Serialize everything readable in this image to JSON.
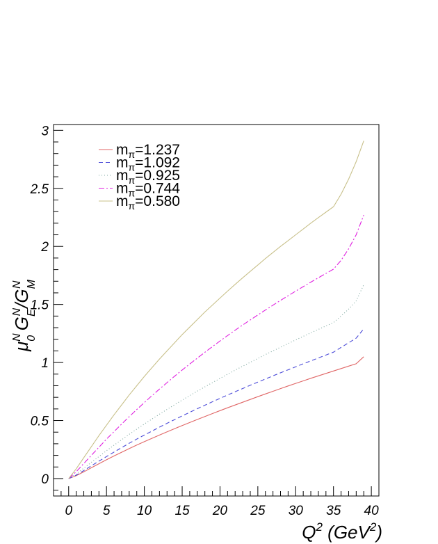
{
  "chart_data": {
    "type": "line",
    "xlim": [
      -2,
      41
    ],
    "ylim": [
      -0.15,
      3.05
    ],
    "x_ticks": [
      0,
      5,
      10,
      15,
      20,
      25,
      30,
      35,
      40
    ],
    "x_tick_labels": [
      "0",
      "5",
      "10",
      "15",
      "20",
      "25",
      "30",
      "35",
      "40"
    ],
    "y_ticks": [
      0,
      0.5,
      1,
      1.5,
      2,
      2.5,
      3
    ],
    "y_tick_labels": [
      "0",
      "0.5",
      "1",
      "1.5",
      "2",
      "2.5",
      "3"
    ],
    "xlabel": {
      "base": "Q",
      "sup": "2",
      "unit_open": " (GeV",
      "unit_sup": "2",
      "unit_close": ")"
    },
    "ylabel": {
      "mu": "μ",
      "mu_sub": "0",
      "mu_sup": "N",
      "ge": "G",
      "ge_sub": "E",
      "ge_sup": "N",
      "slash": "/",
      "gm": "G",
      "gm_sub": "M",
      "gm_sup": "N"
    },
    "legend_position": "top-left",
    "grid": false,
    "x": [
      0,
      1,
      2,
      3,
      4,
      5,
      6,
      7,
      8,
      9,
      10,
      11,
      12,
      13,
      14,
      15,
      16,
      17,
      18,
      19,
      20,
      21,
      22,
      23,
      24,
      25,
      26,
      27,
      28,
      29,
      30,
      31,
      32,
      33,
      34,
      35,
      36,
      37,
      38,
      39
    ],
    "series": [
      {
        "name": "m",
        "sub": "π",
        "value": "=1.237",
        "color": "#e06666",
        "dash": "",
        "values": [
          0,
          0.025,
          0.058,
          0.093,
          0.128,
          0.162,
          0.195,
          0.227,
          0.258,
          0.289,
          0.318,
          0.347,
          0.375,
          0.403,
          0.43,
          0.457,
          0.483,
          0.509,
          0.535,
          0.56,
          0.585,
          0.61,
          0.634,
          0.658,
          0.682,
          0.706,
          0.729,
          0.752,
          0.775,
          0.798,
          0.82,
          0.842,
          0.864,
          0.885,
          0.906,
          0.927,
          0.948,
          0.969,
          0.989,
          1.05
        ]
      },
      {
        "name": "m",
        "sub": "π",
        "value": "=1.092",
        "color": "#4a4ad8",
        "dash": "6,4",
        "values": [
          0,
          0.03,
          0.069,
          0.11,
          0.15,
          0.19,
          0.229,
          0.267,
          0.304,
          0.34,
          0.375,
          0.409,
          0.443,
          0.476,
          0.508,
          0.54,
          0.571,
          0.602,
          0.632,
          0.662,
          0.691,
          0.72,
          0.748,
          0.776,
          0.804,
          0.831,
          0.858,
          0.885,
          0.911,
          0.937,
          0.963,
          0.989,
          1.014,
          1.039,
          1.064,
          1.089,
          1.13,
          1.17,
          1.21,
          1.29
        ]
      },
      {
        "name": "m",
        "sub": "π",
        "value": "=0.925",
        "color": "#7fa8a0",
        "dash": "1,3",
        "values": [
          0,
          0.04,
          0.09,
          0.14,
          0.19,
          0.24,
          0.288,
          0.335,
          0.381,
          0.426,
          0.47,
          0.513,
          0.555,
          0.596,
          0.636,
          0.676,
          0.715,
          0.753,
          0.79,
          0.827,
          0.863,
          0.899,
          0.934,
          0.968,
          1.002,
          1.035,
          1.068,
          1.1,
          1.132,
          1.163,
          1.194,
          1.225,
          1.255,
          1.285,
          1.315,
          1.344,
          1.4,
          1.46,
          1.53,
          1.67
        ]
      },
      {
        "name": "m",
        "sub": "π",
        "value": "=0.744",
        "color": "#e020e0",
        "dash": "8,3,2,3",
        "values": [
          0,
          0.06,
          0.13,
          0.2,
          0.27,
          0.34,
          0.405,
          0.47,
          0.533,
          0.595,
          0.655,
          0.714,
          0.771,
          0.827,
          0.882,
          0.935,
          0.987,
          1.038,
          1.088,
          1.137,
          1.185,
          1.232,
          1.278,
          1.323,
          1.367,
          1.41,
          1.452,
          1.494,
          1.535,
          1.575,
          1.615,
          1.654,
          1.692,
          1.73,
          1.767,
          1.804,
          1.88,
          1.98,
          2.1,
          2.27
        ]
      },
      {
        "name": "m",
        "sub": "π",
        "value": "=0.580",
        "color": "#c8c08a",
        "dash": "",
        "values": [
          0,
          0.085,
          0.18,
          0.275,
          0.37,
          0.46,
          0.55,
          0.635,
          0.72,
          0.8,
          0.88,
          0.955,
          1.03,
          1.1,
          1.17,
          1.24,
          1.305,
          1.37,
          1.435,
          1.495,
          1.555,
          1.615,
          1.673,
          1.73,
          1.785,
          1.84,
          1.895,
          1.948,
          2.0,
          2.05,
          2.1,
          2.15,
          2.2,
          2.248,
          2.295,
          2.342,
          2.45,
          2.58,
          2.73,
          2.91
        ]
      }
    ]
  }
}
